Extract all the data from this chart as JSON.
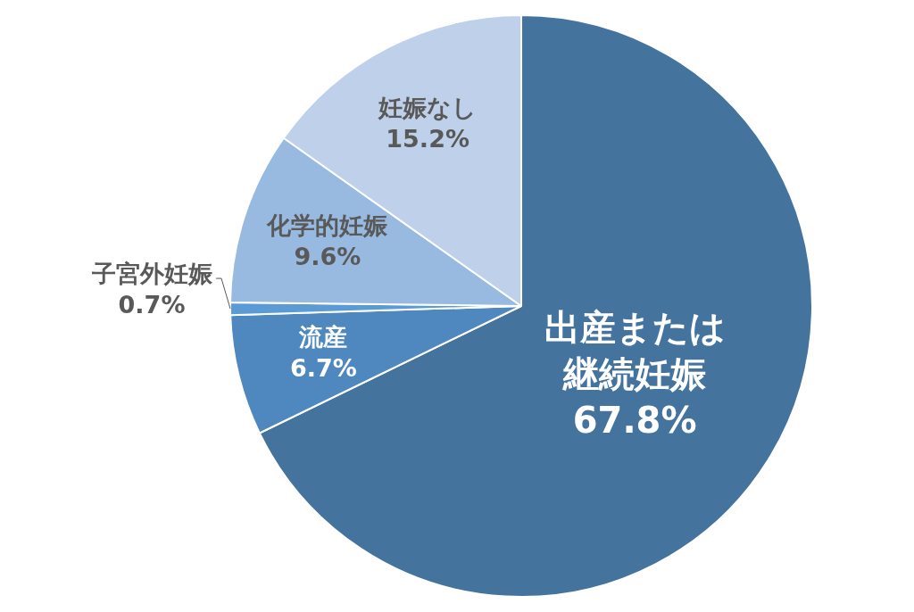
{
  "chart_data": {
    "type": "pie",
    "categories": [
      "出産または継続妊娠",
      "流産",
      "子宮外妊娠",
      "化学的妊娠",
      "妊娠なし"
    ],
    "values": [
      67.8,
      6.7,
      0.7,
      9.6,
      15.2
    ],
    "value_labels": [
      "67.8%",
      "6.7%",
      "0.7%",
      "9.6%",
      "15.2%"
    ],
    "colors": [
      "#44739e",
      "#4e88bf",
      "#5b9bd5",
      "#98bae0",
      "#bfd1ea"
    ],
    "legend": false
  }
}
